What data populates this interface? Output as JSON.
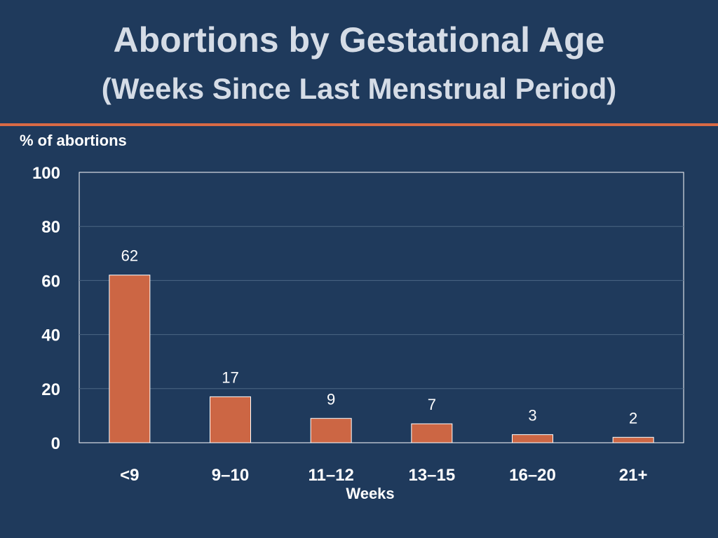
{
  "slide": {
    "title": "Abortions by Gestational Age",
    "subtitle": "(Weeks Since Last Menstrual Period)",
    "divider_color": "#d96a45",
    "background_color": "#1f3a5c"
  },
  "chart_data": {
    "type": "bar",
    "categories": [
      "<9",
      "9–10",
      "11–12",
      "13–15",
      "16–20",
      "21+"
    ],
    "values": [
      62,
      17,
      9,
      7,
      3,
      2
    ],
    "data_labels": [
      "62",
      "17",
      "9",
      "7",
      "3",
      "2"
    ],
    "ylabel": "% of abortions",
    "xlabel": "Weeks",
    "ylim": [
      0,
      100
    ],
    "yticks": [
      "0",
      "20",
      "40",
      "60",
      "80",
      "100"
    ],
    "grid": true,
    "legend": "none",
    "bar_color": "#cc6644"
  }
}
